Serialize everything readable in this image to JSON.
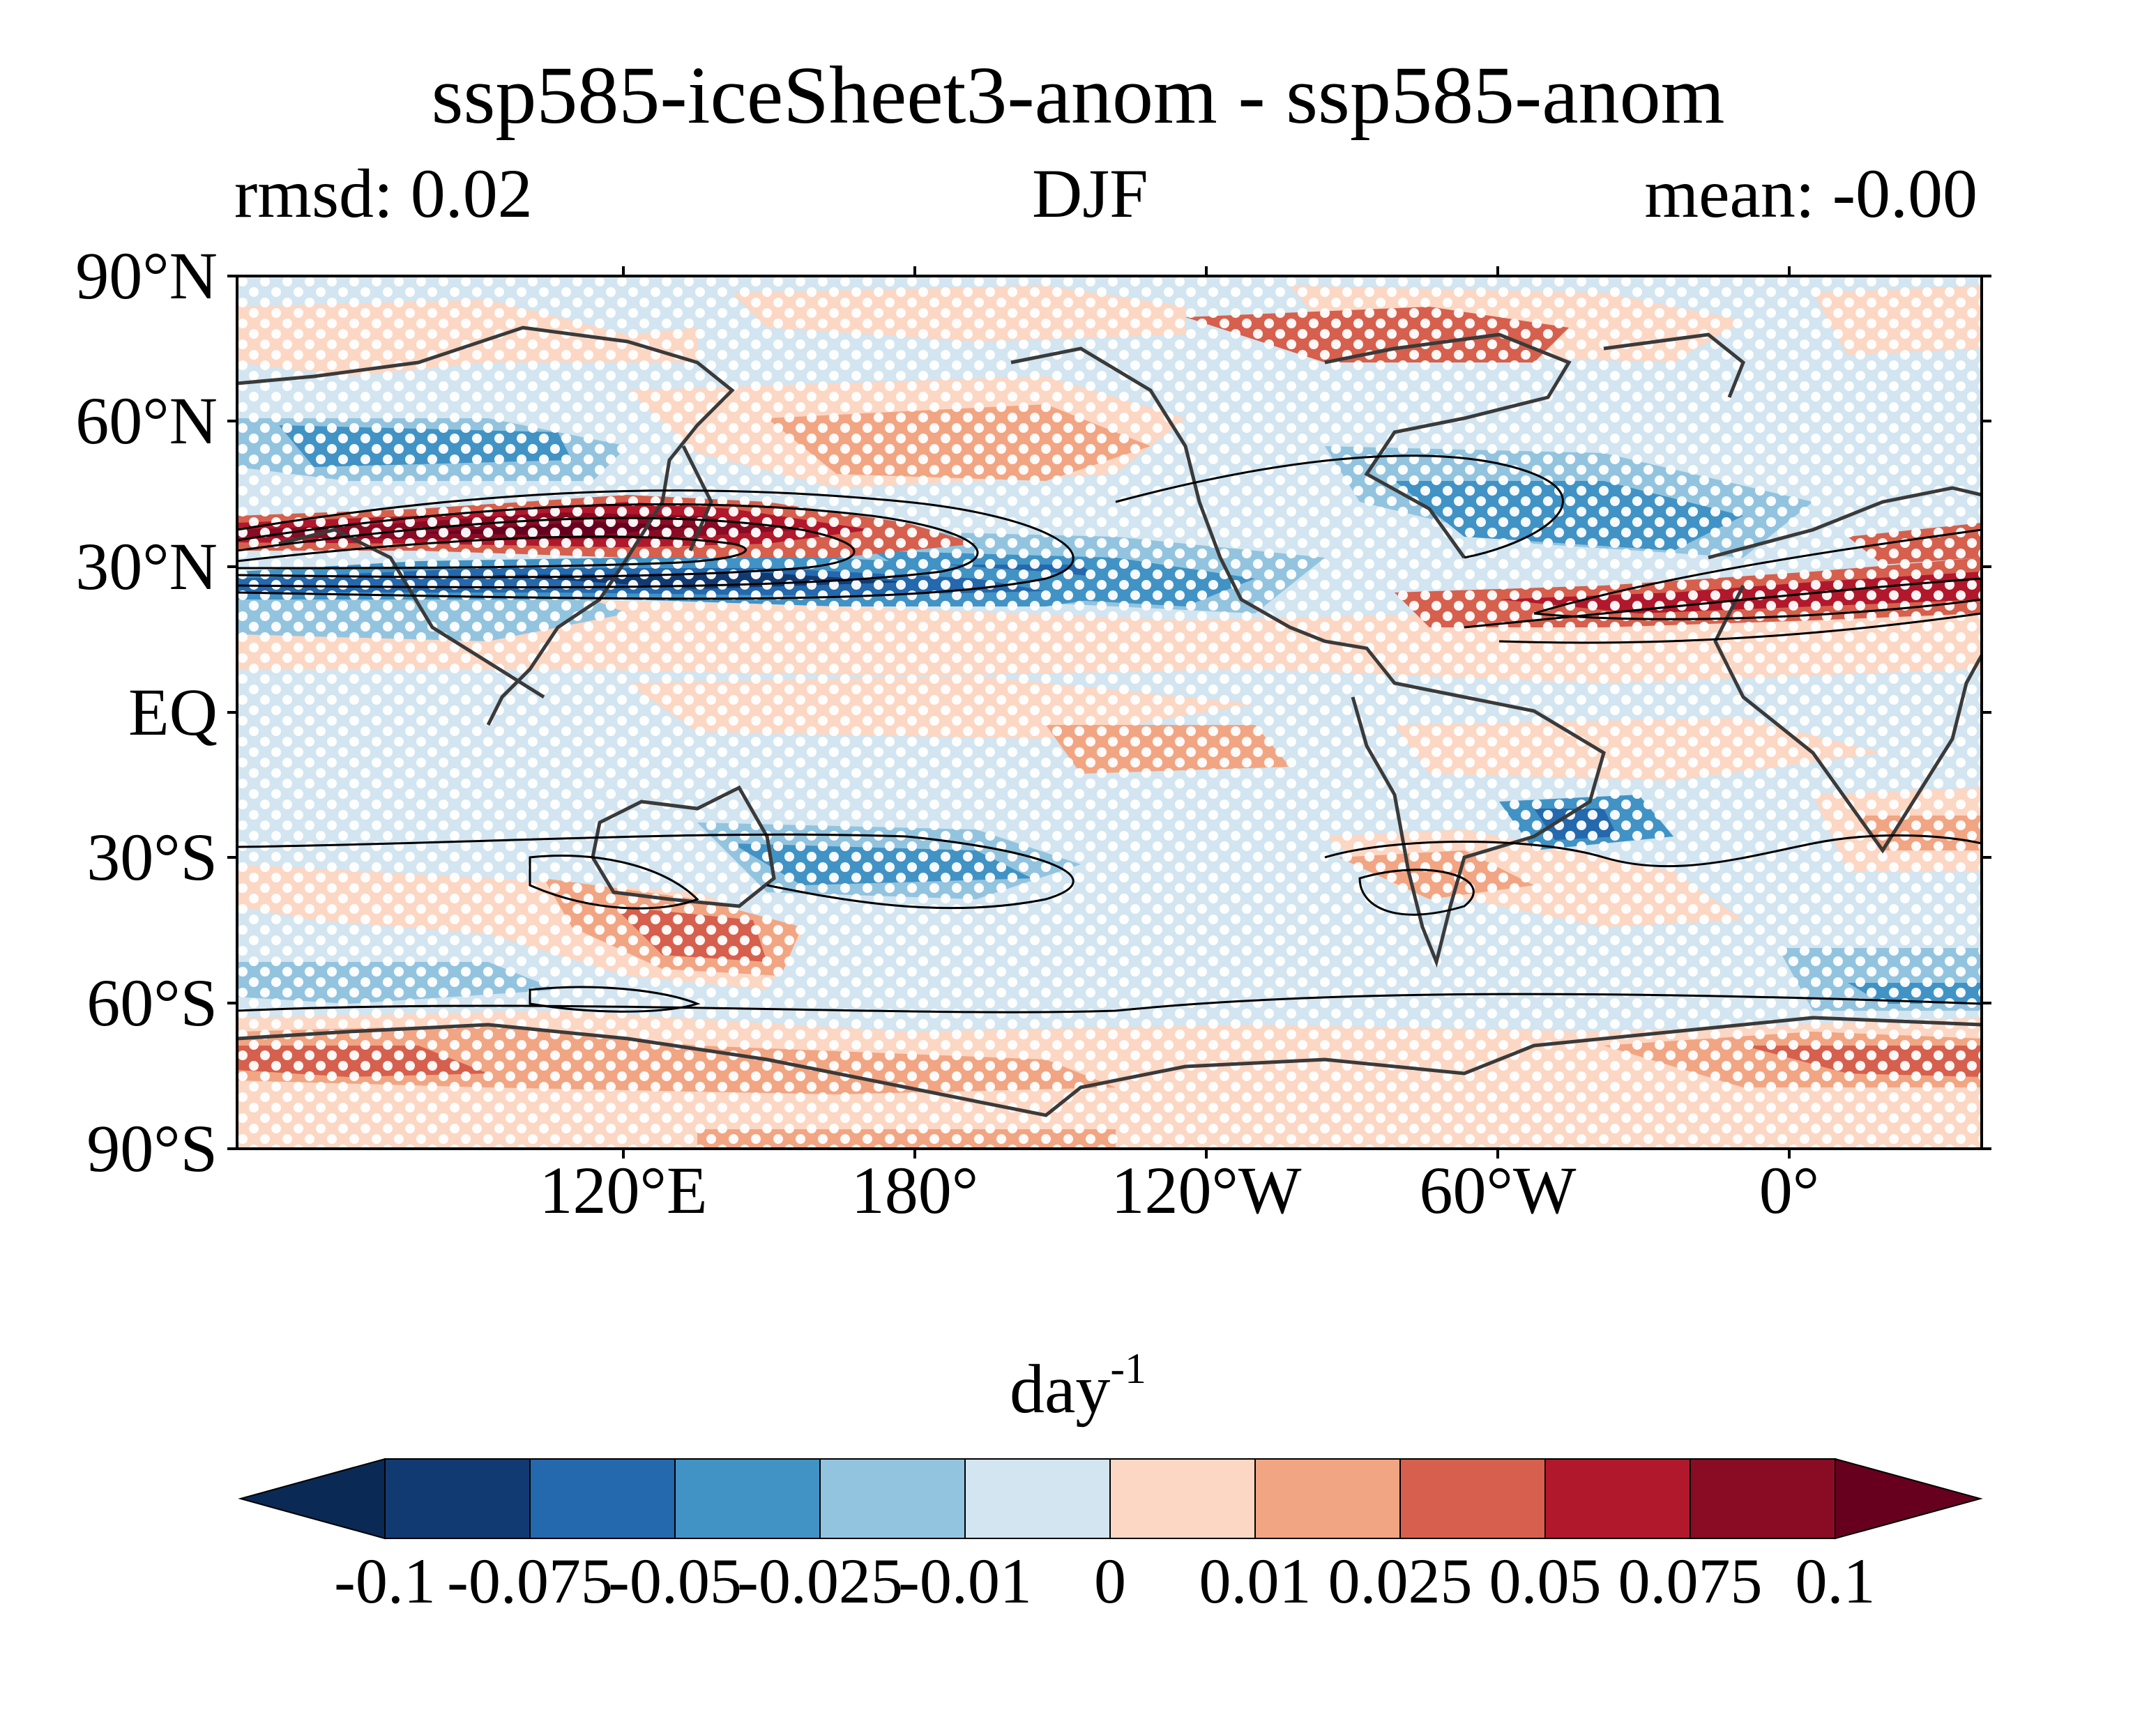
{
  "title": "ssp585-iceSheet3-anom - ssp585-anom",
  "subtitle_left": "rmsd: 0.02",
  "subtitle_center": "DJF",
  "subtitle_right": "mean: -0.00",
  "lat_labels": [
    "90°N",
    "60°N",
    "30°N",
    "EQ",
    "30°S",
    "60°S",
    "90°S"
  ],
  "lon_labels": [
    "120°E",
    "180°",
    "120°W",
    "60°W",
    "0°"
  ],
  "colorbar": {
    "units_main": "day",
    "units_sup": "-1",
    "tick_labels": [
      "-0.1",
      "-0.075",
      "-0.05",
      "-0.025",
      "-0.01",
      "0",
      "0.01",
      "0.025",
      "0.05",
      "0.075",
      "0.1"
    ],
    "colors": [
      "#0a2a55",
      "#123a72",
      "#2468ad",
      "#4193c5",
      "#93c4df",
      "#d2e5f0",
      "#fcd7c4",
      "#f2a582",
      "#d6604d",
      "#b2182b",
      "#8a0b24",
      "#67001f"
    ]
  }
}
